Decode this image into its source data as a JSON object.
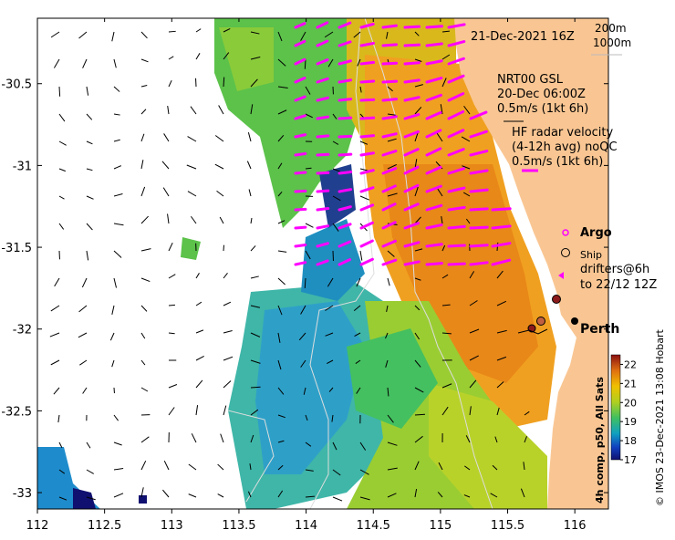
{
  "map": {
    "title_datetime": "21-Dec-2021 16Z",
    "scale_labels": [
      "200m",
      "1000m"
    ],
    "x_ticks": [
      {
        "label": "112",
        "lon": 112
      },
      {
        "label": "112.5",
        "lon": 112.5
      },
      {
        "label": "113",
        "lon": 113
      },
      {
        "label": "113.5",
        "lon": 113.5
      },
      {
        "label": "114",
        "lon": 114
      },
      {
        "label": "114.5",
        "lon": 114.5
      },
      {
        "label": "115",
        "lon": 115
      },
      {
        "label": "115.5",
        "lon": 115.5
      },
      {
        "label": "116",
        "lon": 116
      }
    ],
    "y_ticks": [
      {
        "label": "-30.5",
        "lat": -30.5
      },
      {
        "label": "-31",
        "lat": -31
      },
      {
        "label": "-31.5",
        "lat": -31.5
      },
      {
        "label": "-32",
        "lat": -32
      },
      {
        "label": "-32.5",
        "lat": -32.5
      },
      {
        "label": "-33",
        "lat": -33
      }
    ],
    "lon_range": [
      112,
      116.25
    ],
    "lat_range": [
      -33.1,
      -30.1
    ]
  },
  "legend": {
    "nrt_title": "NRT00 GSL",
    "nrt_date": "20-Dec 06:00Z",
    "nrt_scale": "0.5m/s (1kt 6h)",
    "hf_title": "HF radar velocity",
    "hf_sub": "(4-12h avg) noQC",
    "hf_scale": "0.5m/s (1kt 6h)",
    "argo": "Argo",
    "ship": "Ship",
    "drifters_1": "drifters@6h",
    "drifters_2": "to 22/12 12Z"
  },
  "place_label": "Perth",
  "colorbar": {
    "label": "4h comp, p50, All Sats",
    "ticks": [
      "17",
      "18",
      "19",
      "20",
      "21",
      "22"
    ],
    "range": [
      17,
      22.5
    ]
  },
  "credit": "© IMOS 23-Dec-2021 13:08 Hobart",
  "colors": {
    "land": "#f9c693",
    "hf_arrow": "#ff00ff",
    "ship_marker": "#8b1a1a"
  }
}
